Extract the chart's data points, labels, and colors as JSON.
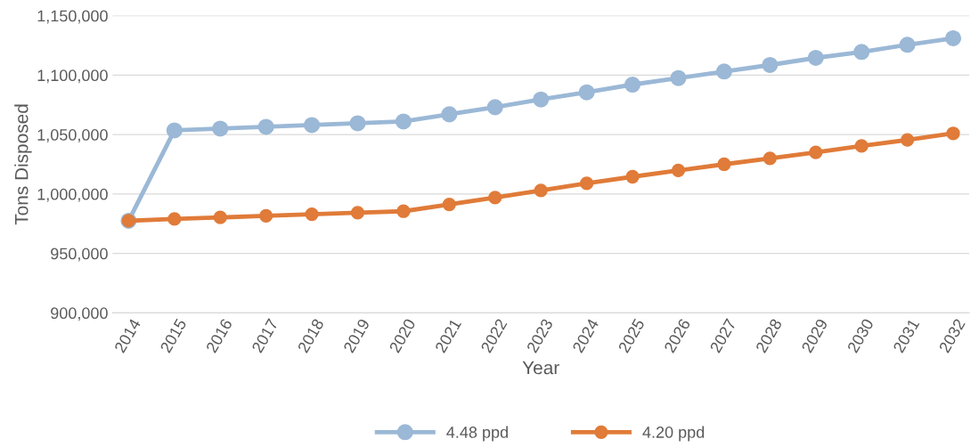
{
  "chart_data": {
    "type": "line",
    "xlabel": "Year",
    "ylabel": "Tons Disposed",
    "categories": [
      "2014",
      "2015",
      "2016",
      "2017",
      "2018",
      "2019",
      "2020",
      "2021",
      "2022",
      "2023",
      "2024",
      "2025",
      "2026",
      "2027",
      "2028",
      "2029",
      "2030",
      "2031",
      "2032"
    ],
    "series": [
      {
        "name": "4.48 ppd",
        "color": "#9bb8d6",
        "values": [
          977500,
          1053500,
          1055000,
          1056500,
          1058000,
          1059500,
          1061000,
          1067000,
          1073000,
          1079500,
          1085500,
          1092000,
          1097500,
          1103000,
          1108500,
          1114500,
          1119500,
          1125500,
          1131000
        ]
      },
      {
        "name": "4.20 ppd",
        "color": "#e07b39",
        "values": [
          977500,
          979000,
          980300,
          981600,
          983000,
          984300,
          985500,
          991200,
          997000,
          1003000,
          1009000,
          1014500,
          1019800,
          1025000,
          1030000,
          1035000,
          1040500,
          1045500,
          1051000
        ]
      }
    ],
    "ylim": [
      900000,
      1150000
    ],
    "yticks": [
      {
        "value": 900000,
        "label": "900,000"
      },
      {
        "value": 950000,
        "label": "950,000"
      },
      {
        "value": 1000000,
        "label": "1,000,000"
      },
      {
        "value": 1050000,
        "label": "1,050,000"
      },
      {
        "value": 1100000,
        "label": "1,100,000"
      },
      {
        "value": 1150000,
        "label": "1,150,000"
      }
    ],
    "grid": "y",
    "legend": "bottom",
    "marker": "circle",
    "line_style": "solid"
  }
}
